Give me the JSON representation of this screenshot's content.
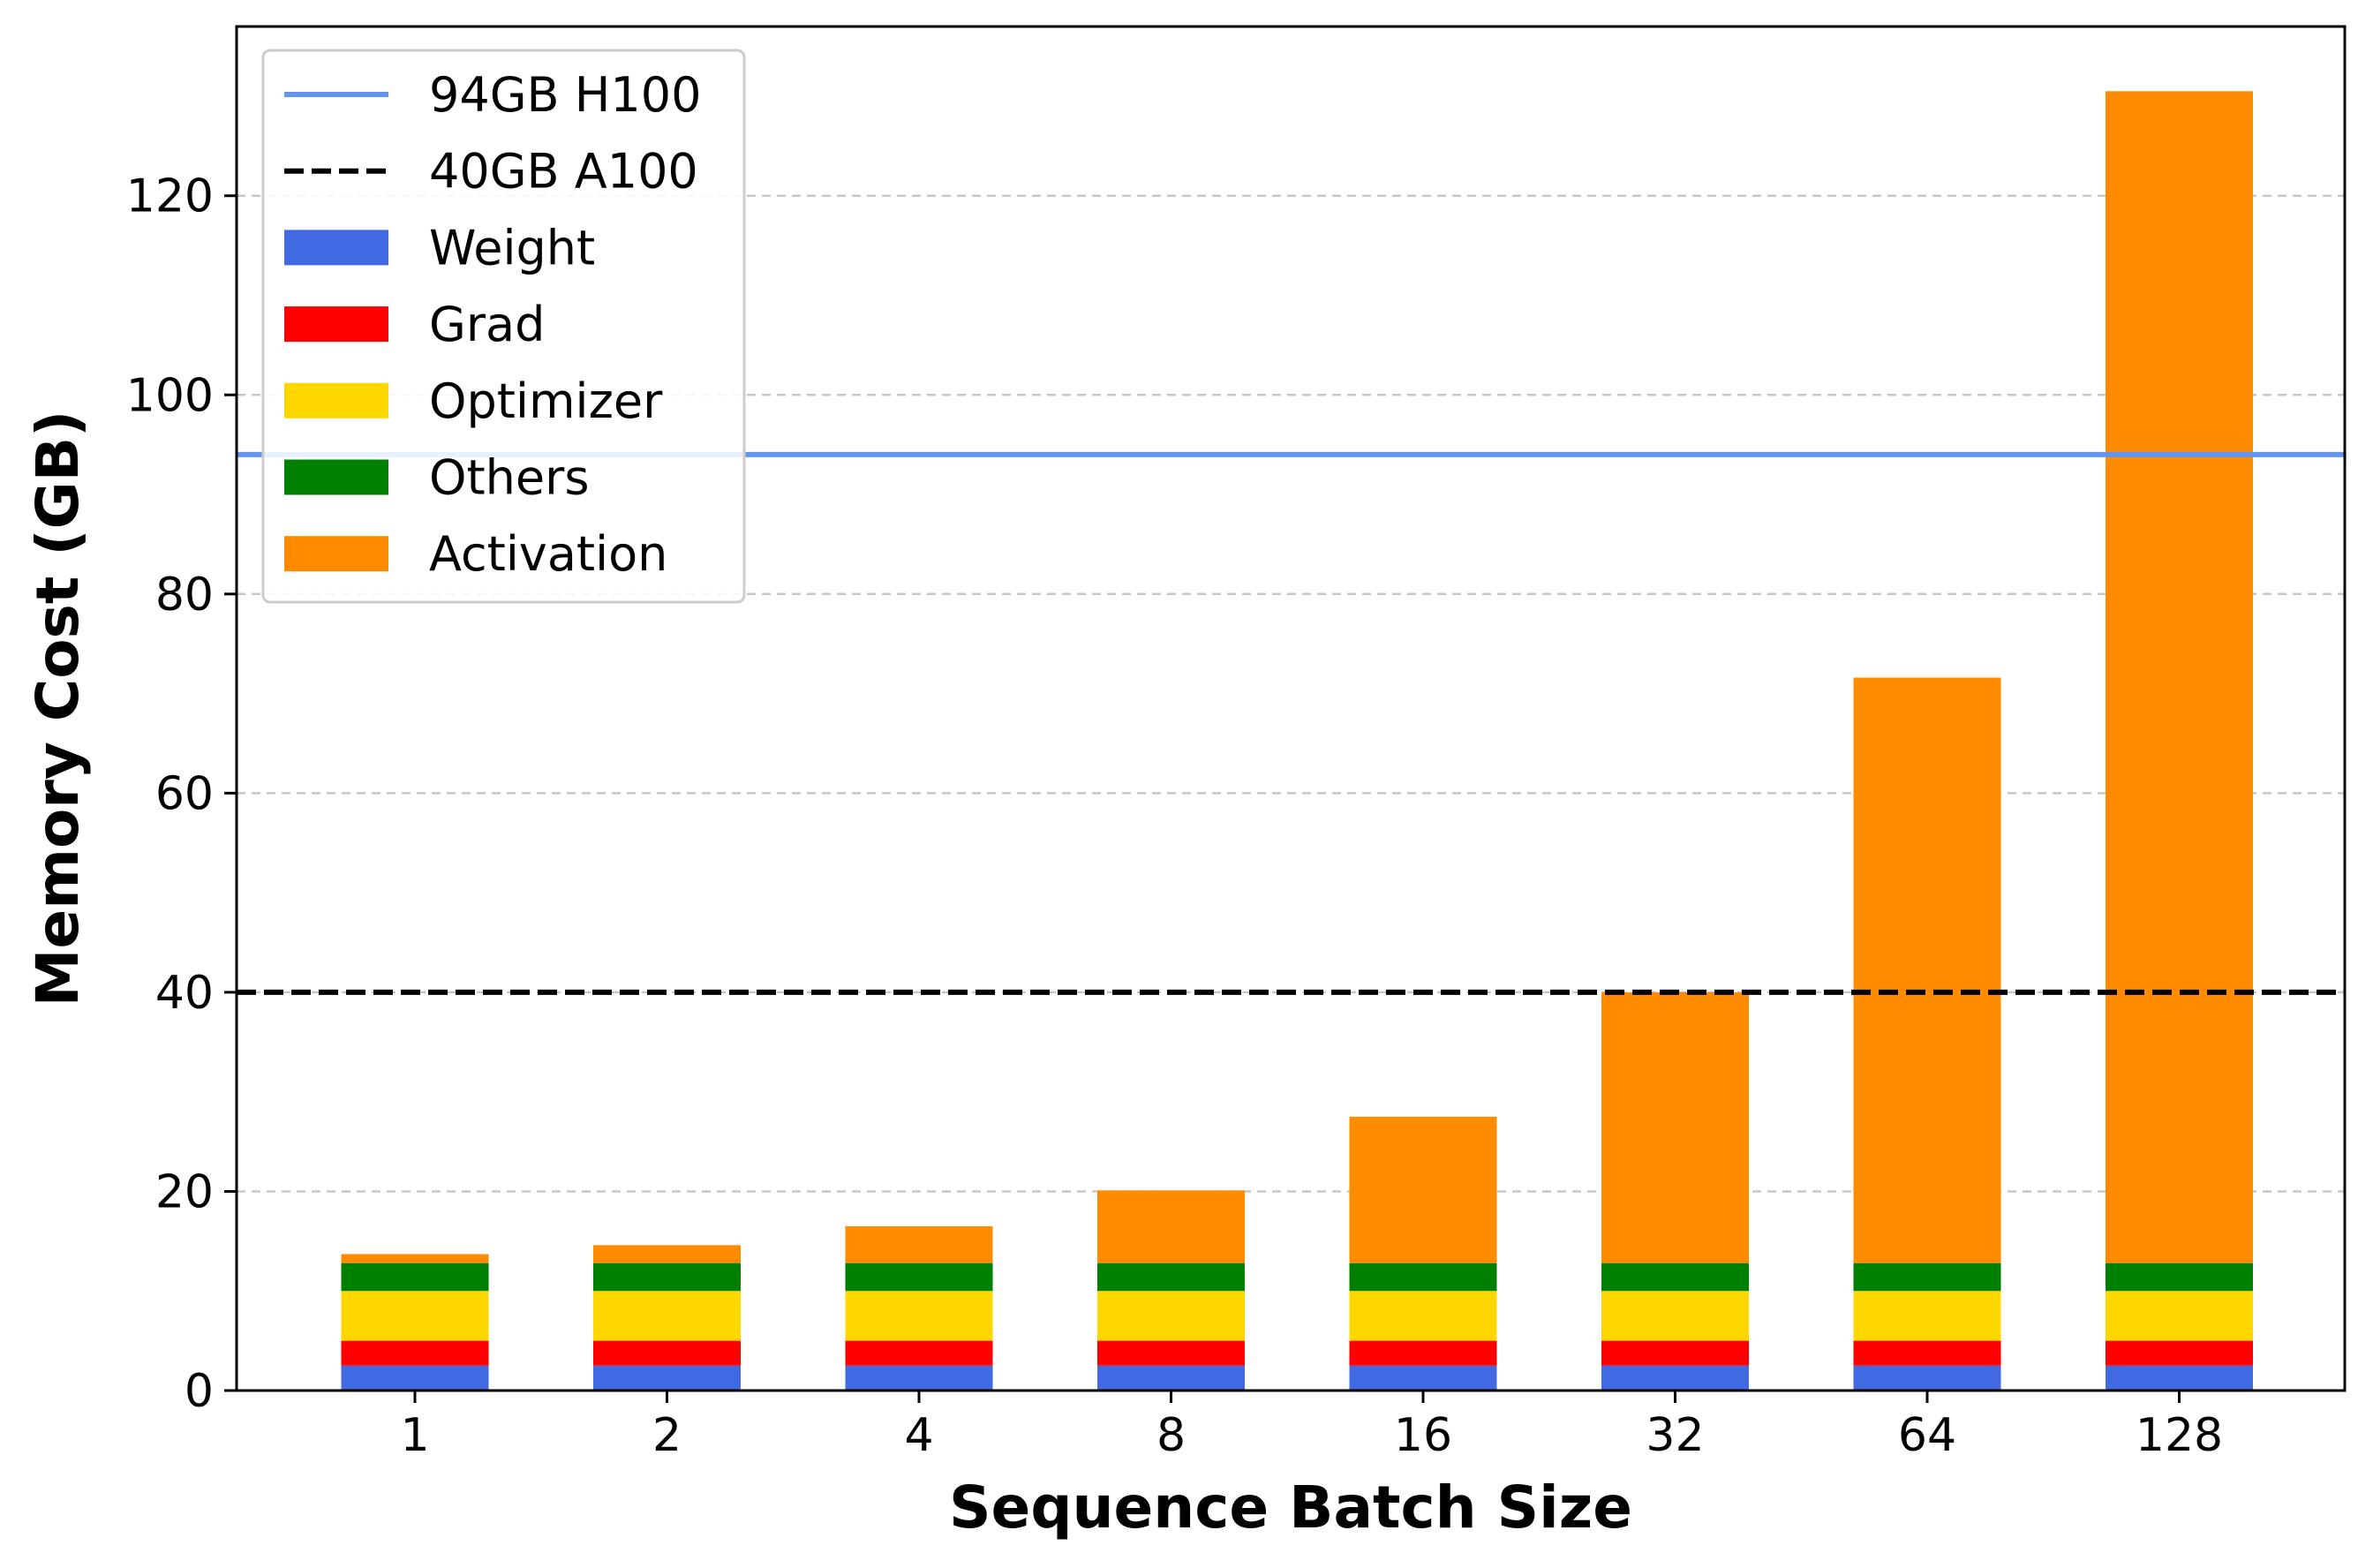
{
  "chart_data": {
    "type": "bar",
    "stacked": true,
    "title": "",
    "xlabel": "Sequence Batch Size",
    "ylabel": "Memory Cost (GB)",
    "categories": [
      "1",
      "2",
      "4",
      "8",
      "16",
      "32",
      "64",
      "128"
    ],
    "ylim": [
      0,
      137
    ],
    "yticks": [
      0,
      20,
      40,
      60,
      80,
      100,
      120
    ],
    "ytick_labels": [
      "0",
      "20",
      "40",
      "60",
      "80",
      "100",
      "120"
    ],
    "grid": "horizontal-dashed",
    "legend_position": "top-left",
    "series": [
      {
        "name": "Weight",
        "color": "#4169E1",
        "values": [
          2.5,
          2.5,
          2.5,
          2.5,
          2.5,
          2.5,
          2.5,
          2.5
        ]
      },
      {
        "name": "Grad",
        "color": "#FF0000",
        "values": [
          2.5,
          2.5,
          2.5,
          2.5,
          2.5,
          2.5,
          2.5,
          2.5
        ]
      },
      {
        "name": "Optimizer",
        "color": "#FFD700",
        "values": [
          5.0,
          5.0,
          5.0,
          5.0,
          5.0,
          5.0,
          5.0,
          5.0
        ]
      },
      {
        "name": "Others",
        "color": "#008000",
        "values": [
          2.8,
          2.8,
          2.8,
          2.8,
          2.8,
          2.8,
          2.8,
          2.8
        ]
      },
      {
        "name": "Activation",
        "color": "#FF8C00",
        "values": [
          0.9,
          1.8,
          3.7,
          7.3,
          14.7,
          27.2,
          58.8,
          117.7
        ]
      }
    ],
    "reference_lines": [
      {
        "name": "94GB H100",
        "value": 94,
        "color": "#6495ED",
        "style": "solid"
      },
      {
        "name": "40GB A100",
        "value": 40,
        "color": "#000000",
        "style": "dashed"
      }
    ]
  }
}
